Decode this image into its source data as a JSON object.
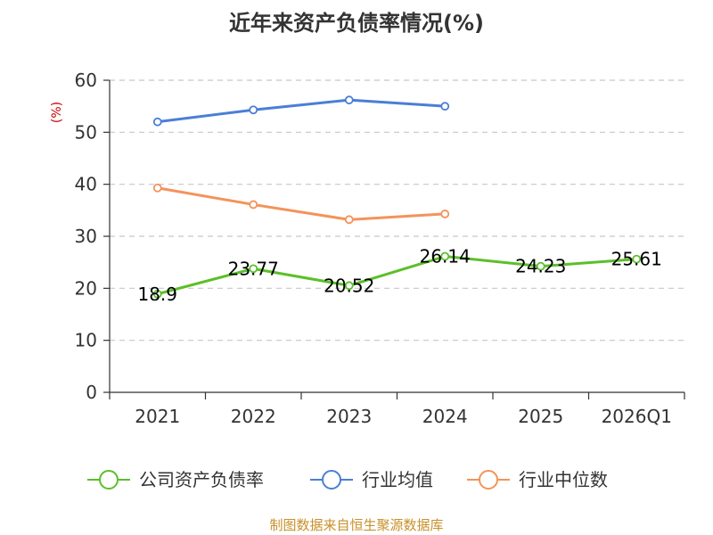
{
  "chart_data": {
    "type": "line",
    "title": "近年来资产负债率情况(%)",
    "ylabel": "(%)",
    "xlabel": "",
    "ylim": [
      0,
      60
    ],
    "yticks": [
      0,
      10,
      20,
      30,
      40,
      50,
      60
    ],
    "categories": [
      "2021",
      "2022",
      "2023",
      "2024",
      "2025",
      "2026Q1"
    ],
    "grid": "horizontal dashed",
    "legend_position": "bottom",
    "series": [
      {
        "name": "公司资产负债率",
        "color": "#5cbf2a",
        "values": [
          18.9,
          23.77,
          20.52,
          26.14,
          24.23,
          25.61
        ],
        "labels": [
          "18.9",
          "23.77",
          "20.52",
          "26.14",
          "24.23",
          "25.61"
        ]
      },
      {
        "name": "行业均值",
        "color": "#4a7fd6",
        "values": [
          52.0,
          54.3,
          56.2,
          55.0,
          null,
          null
        ]
      },
      {
        "name": "行业中位数",
        "color": "#f4935a",
        "values": [
          39.3,
          36.1,
          33.2,
          34.3,
          null,
          null
        ]
      }
    ]
  },
  "source": "制图数据来自恒生聚源数据库"
}
